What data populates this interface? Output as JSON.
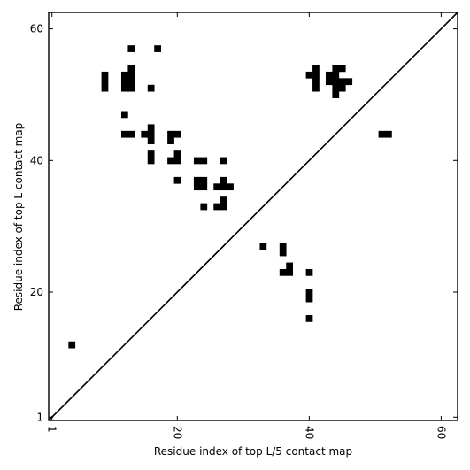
{
  "chart_data": {
    "type": "heatmap",
    "title": "",
    "xlabel": "Residue index of top L/5 contact map",
    "ylabel": "Residue index of top L contact map",
    "xlim": [
      0.5,
      62.5
    ],
    "ylim": [
      0.5,
      62.5
    ],
    "xticks": [
      1,
      20,
      40,
      60
    ],
    "yticks": [
      1,
      20,
      40,
      60
    ],
    "xtick_rotation": -90,
    "grid": false,
    "colors": {
      "cell": "#000000",
      "background": "#ffffff",
      "frame": "#000000",
      "diagonal": "#000000"
    },
    "diagonal_line": true,
    "upper_contacts": [
      [
        13,
        57
      ],
      [
        17,
        57
      ],
      [
        13,
        54
      ],
      [
        13,
        53
      ],
      [
        12,
        53
      ],
      [
        9,
        53
      ],
      [
        9,
        52
      ],
      [
        12,
        52
      ],
      [
        13,
        52
      ],
      [
        9,
        51
      ],
      [
        12,
        51
      ],
      [
        13,
        51
      ],
      [
        16,
        51
      ],
      [
        12,
        47
      ],
      [
        12,
        44
      ],
      [
        13,
        44
      ],
      [
        15,
        44
      ],
      [
        16,
        44
      ],
      [
        16,
        45
      ],
      [
        19,
        44
      ],
      [
        20,
        44
      ],
      [
        19,
        43
      ],
      [
        16,
        43
      ],
      [
        16,
        41
      ],
      [
        16,
        40
      ],
      [
        20,
        41
      ],
      [
        19,
        40
      ],
      [
        20,
        40
      ],
      [
        23,
        40
      ],
      [
        24,
        40
      ],
      [
        27,
        40
      ],
      [
        20,
        37
      ],
      [
        23,
        37
      ],
      [
        24,
        37
      ],
      [
        27,
        37
      ],
      [
        23,
        36
      ],
      [
        24,
        36
      ],
      [
        26,
        36
      ],
      [
        27,
        36
      ],
      [
        28,
        36
      ],
      [
        27,
        34
      ],
      [
        24,
        33
      ],
      [
        26,
        33
      ],
      [
        27,
        33
      ],
      [
        41,
        54
      ],
      [
        41,
        53
      ],
      [
        40,
        53
      ],
      [
        41,
        52
      ],
      [
        41,
        51
      ],
      [
        43,
        53
      ],
      [
        44,
        53
      ],
      [
        44,
        54
      ],
      [
        45,
        54
      ],
      [
        43,
        52
      ],
      [
        44,
        52
      ],
      [
        45,
        52
      ],
      [
        46,
        52
      ],
      [
        44,
        51
      ],
      [
        45,
        51
      ],
      [
        44,
        50
      ],
      [
        51,
        44
      ],
      [
        52,
        44
      ]
    ],
    "lower_contacts": [
      [
        4,
        12
      ],
      [
        33,
        27
      ],
      [
        36,
        27
      ],
      [
        36,
        26
      ],
      [
        37,
        24
      ],
      [
        36,
        23
      ],
      [
        37,
        23
      ],
      [
        40,
        23
      ],
      [
        40,
        20
      ],
      [
        40,
        19
      ],
      [
        40,
        16
      ]
    ]
  }
}
